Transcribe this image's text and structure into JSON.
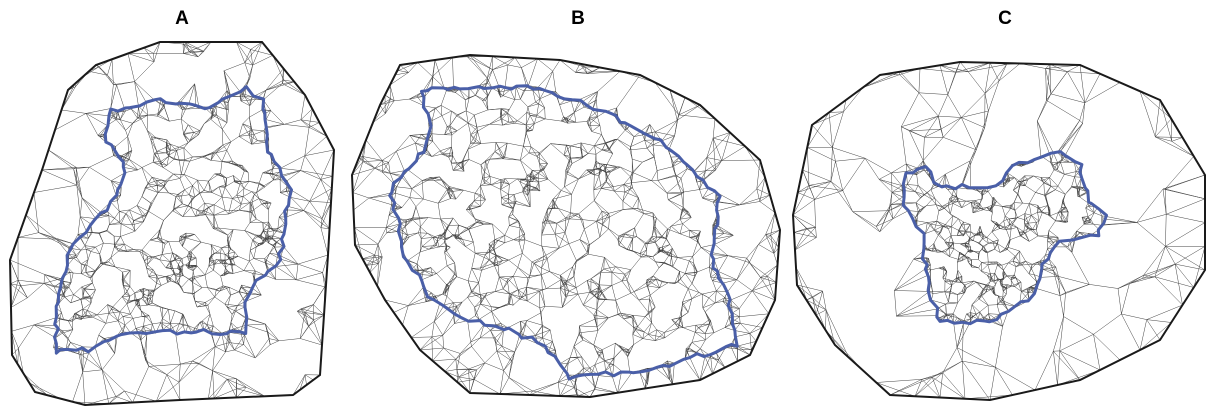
{
  "panels": [
    {
      "label": "A",
      "description_colors": {
        "mesh": "#333333",
        "boundary": "#4a5fa8",
        "hull": "#1a1a1a"
      }
    },
    {
      "label": "B",
      "description_colors": {
        "mesh": "#333333",
        "boundary": "#4a5fa8",
        "hull": "#1a1a1a"
      }
    },
    {
      "label": "C",
      "description_colors": {
        "mesh": "#333333",
        "boundary": "#4a5fa8",
        "hull": "#1a1a1a"
      }
    }
  ],
  "colors": {
    "mesh_edge": "#444444",
    "boundary": "#4a5fa8",
    "hull": "#1a1a1a",
    "background": "#ffffff"
  }
}
